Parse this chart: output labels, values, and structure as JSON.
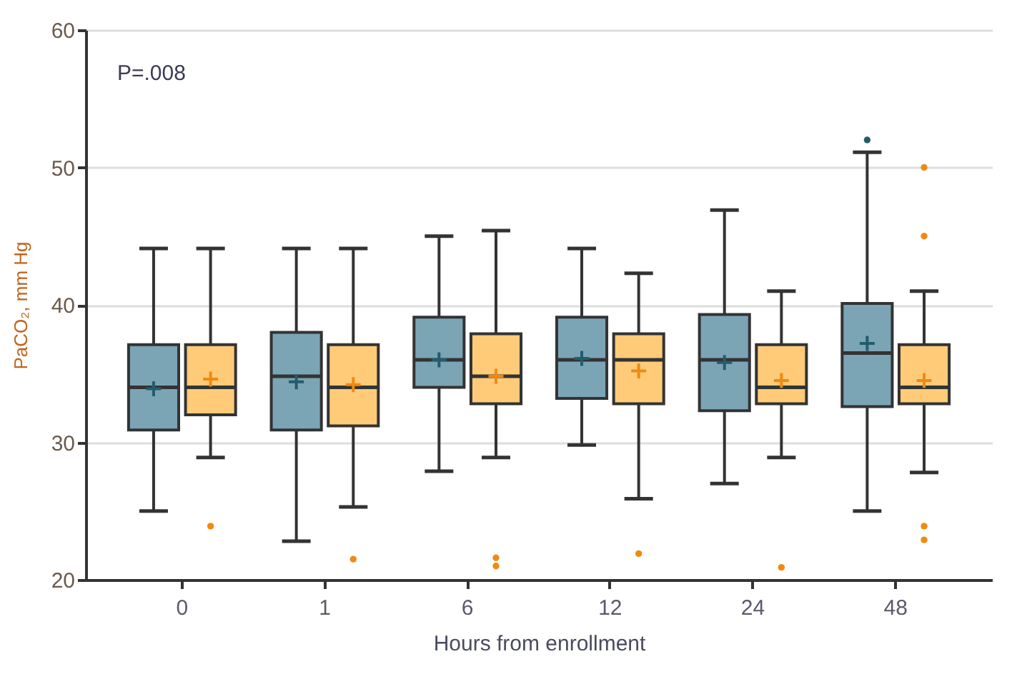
{
  "chart_data": {
    "type": "box",
    "xlabel": "Hours from enrollment",
    "ylabel": "PaCO₂, mm Hg",
    "annotations": [
      "P=.008"
    ],
    "categories": [
      "0",
      "1",
      "6",
      "12",
      "24",
      "48"
    ],
    "ylim": [
      20,
      60
    ],
    "yticks": [
      20,
      30,
      40,
      50,
      60
    ],
    "grid": "y",
    "legend": false,
    "series": [
      {
        "color": "#7ba5b5",
        "boxes": [
          {
            "low": 25.0,
            "q1": 30.9,
            "median": 34.0,
            "q3": 37.1,
            "high": 44.1,
            "mean": 33.9
          },
          {
            "low": 22.8,
            "q1": 30.9,
            "median": 34.8,
            "q3": 38.0,
            "high": 44.1,
            "mean": 34.4
          },
          {
            "low": 27.9,
            "q1": 34.0,
            "median": 36.0,
            "q3": 39.1,
            "high": 45.0,
            "mean": 36.0
          },
          {
            "low": 29.8,
            "q1": 33.2,
            "median": 36.0,
            "q3": 39.1,
            "high": 44.1,
            "mean": 36.1
          },
          {
            "low": 27.0,
            "q1": 32.3,
            "median": 36.0,
            "q3": 39.3,
            "high": 46.9,
            "mean": 35.8
          },
          {
            "low": 25.0,
            "q1": 32.6,
            "median": 36.5,
            "q3": 40.1,
            "high": 51.1,
            "mean": 37.2,
            "outliers": [
              52.0
            ]
          }
        ]
      },
      {
        "color": "#ffcb78",
        "boxes": [
          {
            "low": 28.9,
            "q1": 32.0,
            "median": 34.0,
            "q3": 37.1,
            "high": 44.1,
            "mean": 34.6,
            "outliers": [
              23.9
            ]
          },
          {
            "low": 25.3,
            "q1": 31.2,
            "median": 34.0,
            "q3": 37.1,
            "high": 44.1,
            "mean": 34.2,
            "outliers": [
              21.5
            ]
          },
          {
            "low": 28.9,
            "q1": 32.8,
            "median": 34.8,
            "q3": 37.9,
            "high": 45.4,
            "mean": 34.8,
            "outliers": [
              21.6,
              21.0
            ]
          },
          {
            "low": 25.9,
            "q1": 32.8,
            "median": 36.0,
            "q3": 37.9,
            "high": 42.3,
            "mean": 35.2,
            "outliers": [
              21.9
            ]
          },
          {
            "low": 28.9,
            "q1": 32.8,
            "median": 34.0,
            "q3": 37.1,
            "high": 41.0,
            "mean": 34.5,
            "outliers": [
              20.9
            ]
          },
          {
            "low": 27.8,
            "q1": 32.8,
            "median": 34.0,
            "q3": 37.1,
            "high": 41.0,
            "mean": 34.5,
            "outliers": [
              50.0,
              45.0,
              23.9,
              22.9
            ]
          }
        ]
      }
    ]
  }
}
